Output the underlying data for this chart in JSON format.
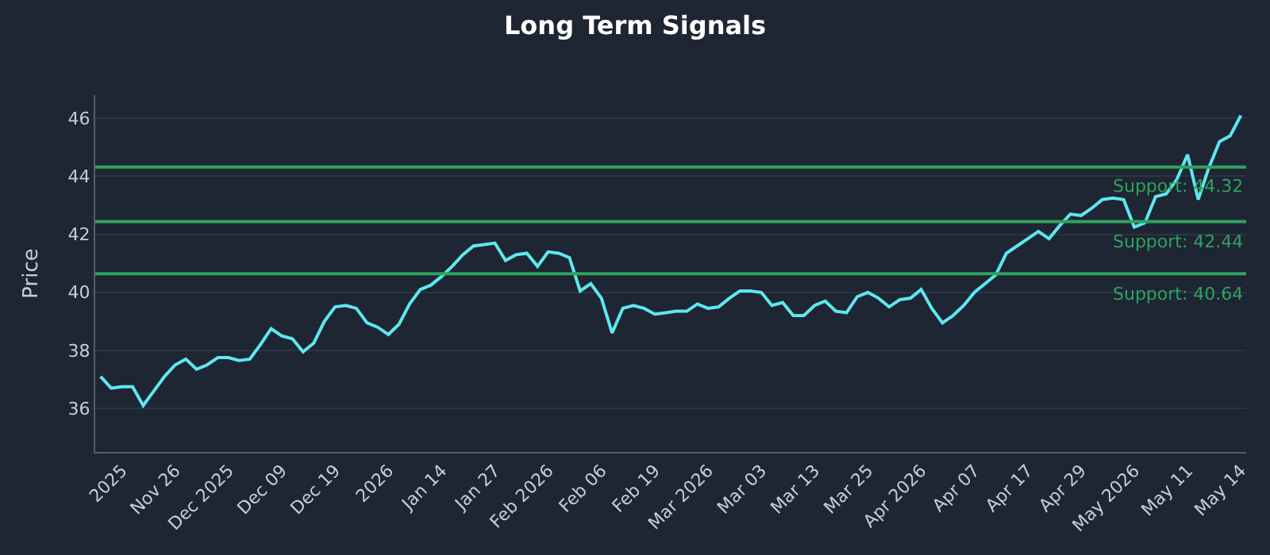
{
  "chart_data": {
    "type": "line",
    "title": "Long Term Signals",
    "ylabel": "Price",
    "categories": [
      null,
      null,
      "2025",
      null,
      null,
      null,
      null,
      "Nov 26",
      null,
      null,
      null,
      null,
      "Dec 2025",
      null,
      null,
      null,
      null,
      "Dec 09",
      null,
      null,
      null,
      null,
      "Dec 19",
      null,
      null,
      null,
      null,
      "2026",
      null,
      null,
      null,
      null,
      "Jan 14",
      null,
      null,
      null,
      null,
      "Jan 27",
      null,
      null,
      null,
      null,
      "Feb 2026",
      null,
      null,
      null,
      null,
      "Feb 06",
      null,
      null,
      null,
      null,
      "Feb 19",
      null,
      null,
      null,
      null,
      "Mar 2026",
      null,
      null,
      null,
      null,
      "Mar 03",
      null,
      null,
      null,
      null,
      "Mar 13",
      null,
      null,
      null,
      null,
      "Mar 25",
      null,
      null,
      null,
      null,
      "Apr 2026",
      null,
      null,
      null,
      null,
      "Apr 07",
      null,
      null,
      null,
      null,
      "Apr 17",
      null,
      null,
      null,
      null,
      "Apr 29",
      null,
      null,
      null,
      null,
      "May 2026",
      null,
      null,
      null,
      null,
      "May 11",
      null,
      null,
      null,
      null,
      "May 14"
    ],
    "series": [
      {
        "color": "#5ce8ee",
        "values": [
          37.1,
          36.7,
          36.75,
          36.75,
          36.1,
          36.6,
          37.1,
          37.5,
          37.7,
          37.35,
          37.5,
          37.75,
          37.75,
          37.65,
          37.7,
          38.2,
          38.75,
          38.5,
          38.4,
          37.95,
          38.25,
          39.0,
          39.5,
          39.55,
          39.45,
          38.95,
          38.8,
          38.55,
          38.9,
          39.6,
          40.1,
          40.25,
          40.55,
          40.9,
          41.3,
          41.6,
          41.65,
          41.7,
          41.1,
          41.3,
          41.35,
          40.9,
          41.4,
          41.35,
          41.2,
          40.05,
          40.3,
          39.8,
          38.6,
          39.45,
          39.55,
          39.45,
          39.25,
          39.3,
          39.35,
          39.35,
          39.6,
          39.45,
          39.5,
          39.8,
          40.05,
          40.05,
          40.0,
          39.55,
          39.65,
          39.2,
          39.2,
          39.55,
          39.7,
          39.35,
          39.3,
          39.85,
          40.0,
          39.8,
          39.5,
          39.75,
          39.8,
          40.1,
          39.45,
          38.95,
          39.2,
          39.55,
          40.0,
          40.3,
          40.6,
          41.35,
          41.6,
          41.85,
          42.1,
          41.85,
          42.3,
          42.7,
          42.65,
          42.9,
          43.2,
          43.25,
          43.2,
          42.25,
          42.4,
          43.3,
          43.4,
          43.9,
          44.75,
          43.2,
          44.3,
          45.2,
          45.4,
          46.1
        ]
      }
    ],
    "ylim": [
      34.5,
      46.8
    ],
    "yticks": [
      36,
      38,
      40,
      42,
      44,
      46
    ],
    "grid": "y",
    "line_style": "solid",
    "marker": "none",
    "ref_lines": [
      {
        "axis": "y",
        "value": 44.32,
        "label": "Support: 44.32",
        "color": "#2fa35e"
      },
      {
        "axis": "y",
        "value": 42.44,
        "label": "Support: 42.44",
        "color": "#2fa35e"
      },
      {
        "axis": "y",
        "value": 40.64,
        "label": "Support: 40.64",
        "color": "#2fa35e"
      }
    ]
  }
}
